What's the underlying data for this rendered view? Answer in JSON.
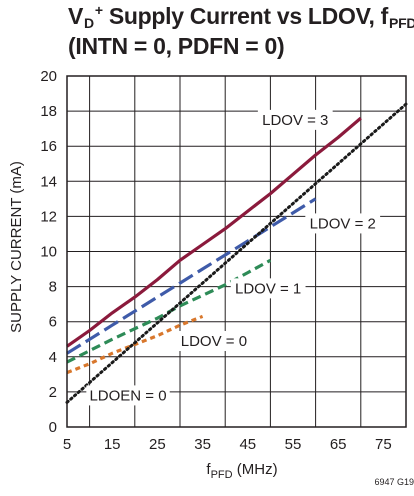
{
  "title": {
    "v": "V",
    "v_sub": "D",
    "sup": "+",
    "mid": " Supply Current vs LDOV, f",
    "f_sub": "PFD",
    "line2": "(INTN = 0, PDFN = 0)"
  },
  "figure_id": "6947 G19",
  "chart_data": {
    "type": "line",
    "xlabel": "f",
    "xlabel_sub": "PFD",
    "xlabel_unit": " (MHz)",
    "ylabel": "SUPPLY CURRENT (mA)",
    "xlim": [
      5,
      80
    ],
    "ylim": [
      0,
      20
    ],
    "xticks": [
      5,
      15,
      25,
      35,
      45,
      55,
      65,
      75
    ],
    "yticks": [
      0,
      2,
      4,
      6,
      8,
      10,
      12,
      14,
      16,
      18,
      20
    ],
    "grid": true,
    "series": [
      {
        "name": "LDOV = 3",
        "color": "#8b1a3c",
        "dash": "solid",
        "x": [
          5,
          10,
          15,
          20,
          25,
          30,
          35,
          40,
          45,
          50,
          55,
          60,
          65,
          70
        ],
        "y": [
          4.6,
          5.5,
          6.5,
          7.4,
          8.4,
          9.5,
          10.4,
          11.3,
          12.3,
          13.3,
          14.4,
          15.5,
          16.5,
          17.6
        ]
      },
      {
        "name": "LDOV = 2",
        "color": "#3f5ba9",
        "dash": "longdash",
        "x": [
          5,
          10,
          15,
          20,
          25,
          30,
          35,
          40,
          45,
          50,
          55,
          60
        ],
        "y": [
          4.2,
          5.0,
          5.8,
          6.6,
          7.4,
          8.2,
          9.0,
          9.8,
          10.6,
          11.4,
          12.2,
          13.0
        ]
      },
      {
        "name": "LDOV = 1",
        "color": "#2e8b57",
        "dash": "dash",
        "x": [
          5,
          10,
          15,
          20,
          25,
          30,
          35,
          40,
          45,
          50
        ],
        "y": [
          3.7,
          4.35,
          5.0,
          5.6,
          6.2,
          6.9,
          7.5,
          8.1,
          8.8,
          9.5
        ]
      },
      {
        "name": "LDOV = 0",
        "color": "#d8772c",
        "dash": "shortdash",
        "x": [
          5,
          10,
          15,
          20,
          25,
          30,
          35
        ],
        "y": [
          3.1,
          3.6,
          4.2,
          4.7,
          5.2,
          5.8,
          6.3
        ]
      },
      {
        "name": "LDOEN = 0",
        "color": "#1a1a1a",
        "dash": "dot",
        "x": [
          5,
          80
        ],
        "y": [
          1.4,
          18.4
        ]
      }
    ],
    "annotations": [
      {
        "text": "LDOV = 3",
        "x": 55.5,
        "y": 17.5
      },
      {
        "text": "LDOV = 2",
        "x": 66,
        "y": 11.6
      },
      {
        "text": "LDOV = 1",
        "x": 49.5,
        "y": 7.9
      },
      {
        "text": "LDOV = 0",
        "x": 37.5,
        "y": 4.9
      },
      {
        "text": "LDOEN = 0",
        "x": 18.5,
        "y": 1.8
      }
    ]
  }
}
